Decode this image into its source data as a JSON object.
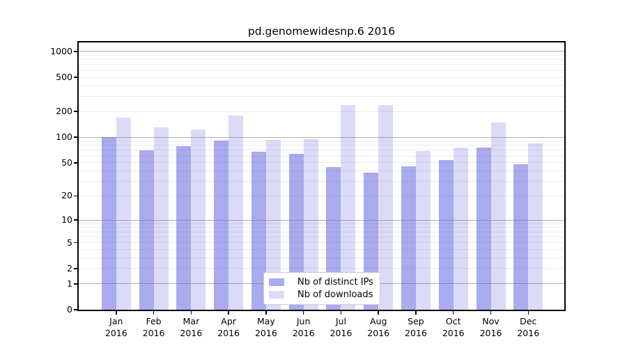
{
  "chart_data": {
    "type": "bar",
    "title": "pd.genomewidesnp.6 2016",
    "categories": [
      {
        "month": "Jan",
        "year": "2016"
      },
      {
        "month": "Feb",
        "year": "2016"
      },
      {
        "month": "Mar",
        "year": "2016"
      },
      {
        "month": "Apr",
        "year": "2016"
      },
      {
        "month": "May",
        "year": "2016"
      },
      {
        "month": "Jun",
        "year": "2016"
      },
      {
        "month": "Jul",
        "year": "2016"
      },
      {
        "month": "Aug",
        "year": "2016"
      },
      {
        "month": "Sep",
        "year": "2016"
      },
      {
        "month": "Oct",
        "year": "2016"
      },
      {
        "month": "Nov",
        "year": "2016"
      },
      {
        "month": "Dec",
        "year": "2016"
      }
    ],
    "series": [
      {
        "name": "Nb of distinct IPs",
        "color": "rgba(85,85,221,0.5)",
        "values": [
          100,
          70,
          78,
          91,
          68,
          64,
          44,
          38,
          45,
          54,
          76,
          48
        ]
      },
      {
        "name": "Nb of downloads",
        "color": "rgba(85,85,221,0.21)",
        "values": [
          170,
          131,
          123,
          179,
          92,
          94,
          235,
          235,
          69,
          76,
          149,
          84
        ]
      }
    ],
    "xlabel": "",
    "ylabel": "",
    "yscale": "log1p",
    "yticks": [
      0,
      1,
      2,
      5,
      10,
      20,
      50,
      100,
      200,
      500,
      1000
    ],
    "ylim": [
      0,
      1250
    ],
    "grid": true,
    "legend_position": "lower center"
  },
  "colors": {
    "major_grid": "#b0b0b0",
    "minor_grid": "#ebebeb",
    "spine": "#000000",
    "background": "#ffffff"
  }
}
